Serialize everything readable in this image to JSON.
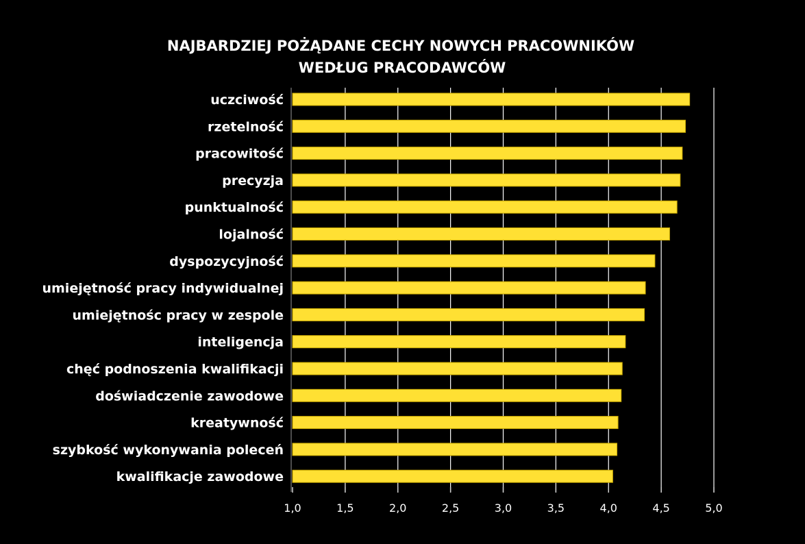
{
  "chart_data": {
    "type": "bar",
    "orientation": "horizontal",
    "title": [
      "NAJBARDZIEJ POŻĄDANE CECHY NOWYCH PRACOWNIKÓW",
      "WEDŁUG PRACODAWCÓW"
    ],
    "categories": [
      "uczciwość",
      "rzetelność",
      "pracowitość",
      "precyzja",
      "punktualność",
      "lojalność",
      "dyspozycyjność",
      "umiejętność pracy indywidualnej",
      "umiejętnośc pracy w zespole",
      "inteligencja",
      "chęć podnoszenia kwalifikacji",
      "doświadczenie zawodowe",
      "kreatywność",
      "szybkość wykonywania poleceń",
      "kwalifikacje zawodowe"
    ],
    "values": [
      4.77,
      4.73,
      4.7,
      4.68,
      4.65,
      4.58,
      4.44,
      4.35,
      4.34,
      4.16,
      4.13,
      4.12,
      4.09,
      4.08,
      4.04
    ],
    "xlim": [
      1.0,
      5.0
    ],
    "xticks": [
      1.0,
      1.5,
      2.0,
      2.5,
      3.0,
      3.5,
      4.0,
      4.5,
      5.0
    ],
    "xtick_labels": [
      "1,0",
      "1,5",
      "2,0",
      "2,5",
      "3,0",
      "3,5",
      "4,0",
      "4,5",
      "5,0"
    ],
    "grid": true,
    "colors": {
      "background": "#000000",
      "bar": "#FFE033",
      "bar_edge": "#C8A800",
      "grid": "#FFFFFF",
      "text": "#FFFFFF"
    }
  }
}
